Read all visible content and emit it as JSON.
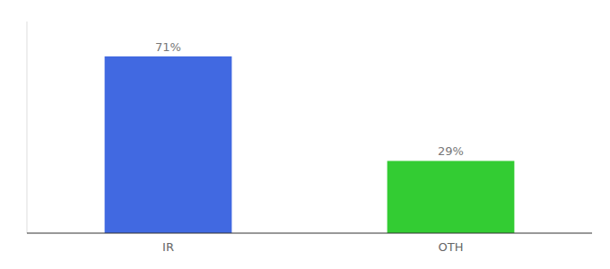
{
  "chart_data": {
    "type": "bar",
    "categories": [
      "IR",
      "OTH"
    ],
    "values": [
      71,
      29
    ],
    "value_labels": [
      "71%",
      "29%"
    ],
    "colors": [
      "#4169e1",
      "#33cc33"
    ],
    "ylim": [
      0,
      85
    ],
    "data_labels": true,
    "tick_labels": "x"
  }
}
